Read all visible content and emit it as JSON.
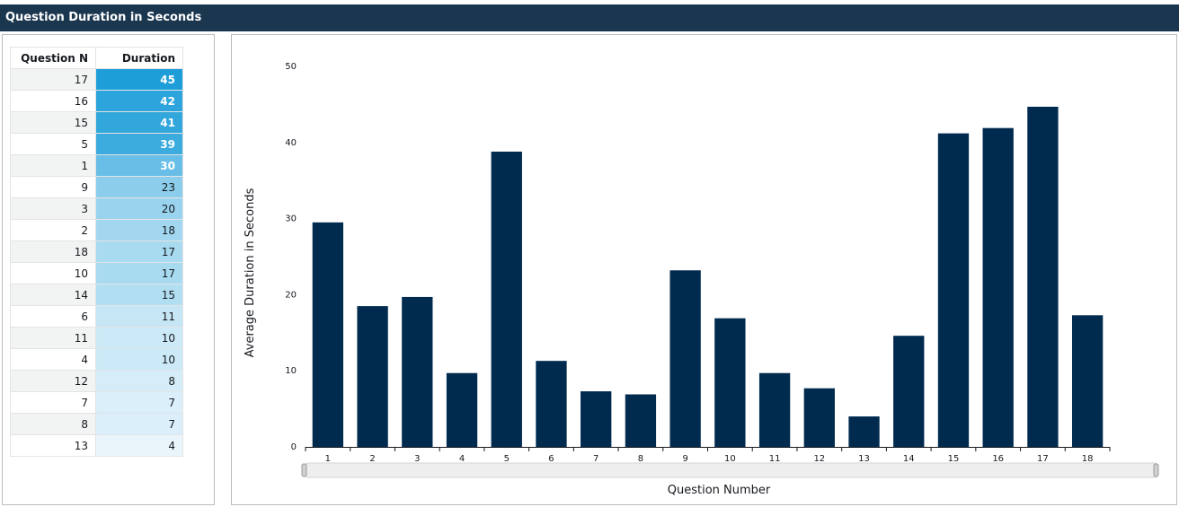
{
  "header": {
    "title": "Question Duration in Seconds"
  },
  "table": {
    "columns": [
      "Question N",
      "Duration"
    ],
    "rows": [
      {
        "q": "17",
        "d": "45"
      },
      {
        "q": "16",
        "d": "42"
      },
      {
        "q": "15",
        "d": "41"
      },
      {
        "q": "5",
        "d": "39"
      },
      {
        "q": "1",
        "d": "30"
      },
      {
        "q": "9",
        "d": "23"
      },
      {
        "q": "3",
        "d": "20"
      },
      {
        "q": "2",
        "d": "18"
      },
      {
        "q": "18",
        "d": "17"
      },
      {
        "q": "10",
        "d": "17"
      },
      {
        "q": "14",
        "d": "15"
      },
      {
        "q": "6",
        "d": "11"
      },
      {
        "q": "11",
        "d": "10"
      },
      {
        "q": "4",
        "d": "10"
      },
      {
        "q": "12",
        "d": "8"
      },
      {
        "q": "7",
        "d": "7"
      },
      {
        "q": "8",
        "d": "7"
      },
      {
        "q": "13",
        "d": "4"
      }
    ]
  },
  "colors": {
    "header_bg": "#1b3750",
    "bar": "#002b4f",
    "heat_high": "#1e9ed9",
    "heat_low": "#ffffff"
  },
  "chart_data": {
    "type": "bar",
    "categories": [
      "1",
      "2",
      "3",
      "4",
      "5",
      "6",
      "7",
      "8",
      "9",
      "10",
      "11",
      "12",
      "13",
      "14",
      "15",
      "16",
      "17",
      "18"
    ],
    "values": [
      29.5,
      18.5,
      19.7,
      9.7,
      38.8,
      11.3,
      7.3,
      6.9,
      23.2,
      16.9,
      9.7,
      7.7,
      4.0,
      14.6,
      41.2,
      41.9,
      44.7,
      17.3
    ],
    "title": "",
    "xlabel": "Question Number",
    "ylabel": "Average Duration in Seconds",
    "ylim": [
      0,
      50
    ],
    "yticks": [
      "0",
      "10",
      "20",
      "30",
      "40",
      "50"
    ],
    "grid": false
  }
}
